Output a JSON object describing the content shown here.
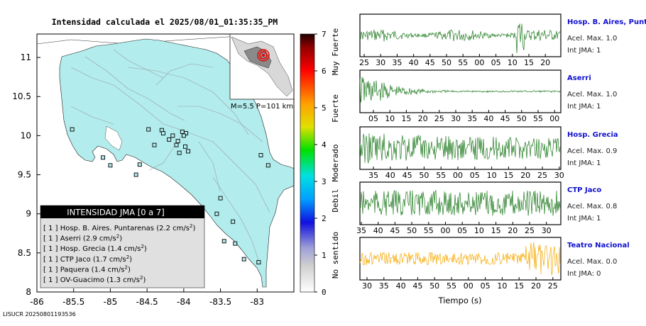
{
  "map": {
    "title": "Intensidad calculada el 2025/08/01_01:35:35_PM",
    "inset_text": "M=5.5 P=101 km",
    "footer_id": "LISUCR 20250801193536",
    "x_ticks": [
      "-86",
      "-85.5",
      "-85",
      "-84.5",
      "-84",
      "-83.5",
      "-83"
    ],
    "y_ticks": [
      "11",
      "10.5",
      "10",
      "9.5",
      "9",
      "8.5",
      "8"
    ],
    "legend": {
      "title": "INTENSIDAD JMA [0 a 7]",
      "entries": [
        {
          "int": "[ 1 ]",
          "name": "Hosp. B. Aires. Puntarenas",
          "val": "(2.2 cm/s",
          "sup": "2",
          "close": ")"
        },
        {
          "int": "[ 1 ]",
          "name": "Aserri",
          "val": "(2.9 cm/s",
          "sup": "2",
          "close": ")"
        },
        {
          "int": "[ 1 ]",
          "name": "Hosp. Grecia",
          "val": "(1.4 cm/s",
          "sup": "2",
          "close": ")"
        },
        {
          "int": "[ 1 ]",
          "name": "CTP Jaco",
          "val": "(1.7 cm/s",
          "sup": "2",
          "close": ")"
        },
        {
          "int": "[ 1 ]",
          "name": "Paquera",
          "val": "(1.4 cm/s",
          "sup": "2",
          "close": ")"
        },
        {
          "int": "[ 1 ]",
          "name": "OV-Guacimo",
          "val": "(1.3 cm/s",
          "sup": "2",
          "close": ")"
        }
      ]
    }
  },
  "colorbar": {
    "ticks": [
      "0",
      "1",
      "2",
      "3",
      "4",
      "5",
      "6",
      "7"
    ],
    "categories": [
      "No sentido",
      "Debil",
      "Moderado",
      "Fuerte",
      "Muy Fuerte"
    ]
  },
  "waveforms": {
    "xlabel": "Tiempo (s)",
    "traces": [
      {
        "station": "Hosp. B. Aires, Puntare",
        "acel": "Acel. Max. 1.0",
        "int": "Int JMA: 1",
        "color": "#1f7a1f",
        "ticks": [
          "25",
          "30",
          "35",
          "40",
          "45",
          "50",
          "55",
          "00",
          "05",
          "10",
          "15",
          "20"
        ]
      },
      {
        "station": "Aserri",
        "acel": "Acel. Max. 1.0",
        "int": "Int JMA: 1",
        "color": "#1f7a1f",
        "ticks": [
          "05",
          "10",
          "15",
          "20",
          "25",
          "30",
          "35",
          "40",
          "45",
          "50",
          "55",
          "00"
        ]
      },
      {
        "station": "Hosp. Grecia",
        "acel": "Acel. Max. 0.9",
        "int": "Int JMA: 1",
        "color": "#1f7a1f",
        "ticks": [
          "35",
          "40",
          "45",
          "50",
          "55",
          "00",
          "05",
          "10",
          "15",
          "20",
          "25",
          "30"
        ]
      },
      {
        "station": "CTP Jaco",
        "acel": "Acel. Max. 0.8",
        "int": "Int JMA: 1",
        "color": "#1f7a1f",
        "ticks": [
          "35",
          "40",
          "45",
          "50",
          "55",
          "00",
          "05",
          "10",
          "15",
          "20",
          "25",
          "30"
        ]
      },
      {
        "station": "Teatro Nacional",
        "acel": "Acel. Max. 0.0",
        "int": "Int JMA: 0",
        "color": "#f5a800",
        "ticks": [
          "30",
          "35",
          "40",
          "45",
          "50",
          "55",
          "00",
          "05",
          "10",
          "15",
          "20",
          "25"
        ]
      }
    ]
  },
  "chart_data": [
    {
      "type": "scatter",
      "title": "Intensidad calculada el 2025/08/01_01:35:35_PM",
      "xlabel": "",
      "ylabel": "",
      "xlim": [
        -86,
        -82.5
      ],
      "ylim": [
        8,
        11.3
      ],
      "legend_position": "bottom-left",
      "stations": [
        {
          "name": "Hosp. B. Aires. Puntarenas",
          "intensity": 1,
          "pga_cm_s2": 2.2
        },
        {
          "name": "Aserri",
          "intensity": 1,
          "pga_cm_s2": 2.9
        },
        {
          "name": "Hosp. Grecia",
          "intensity": 1,
          "pga_cm_s2": 1.4
        },
        {
          "name": "CTP Jaco",
          "intensity": 1,
          "pga_cm_s2": 1.7
        },
        {
          "name": "Paquera",
          "intensity": 1,
          "pga_cm_s2": 1.4
        },
        {
          "name": "OV-Guacimo",
          "intensity": 1,
          "pga_cm_s2": 1.3
        }
      ],
      "station_markers": [
        {
          "x": -85.52,
          "y": 10.08
        },
        {
          "x": -84.48,
          "y": 10.08
        },
        {
          "x": -84.3,
          "y": 10.07
        },
        {
          "x": -84.28,
          "y": 10.03
        },
        {
          "x": -84.02,
          "y": 10.05
        },
        {
          "x": -83.97,
          "y": 10.03
        },
        {
          "x": -84.15,
          "y": 10.0
        },
        {
          "x": -84.0,
          "y": 10.0
        },
        {
          "x": -84.08,
          "y": 9.93
        },
        {
          "x": -84.2,
          "y": 9.95
        },
        {
          "x": -84.1,
          "y": 9.88
        },
        {
          "x": -84.4,
          "y": 9.88
        },
        {
          "x": -83.98,
          "y": 9.86
        },
        {
          "x": -83.94,
          "y": 9.8
        },
        {
          "x": -84.06,
          "y": 9.78
        },
        {
          "x": -82.95,
          "y": 9.75
        },
        {
          "x": -82.85,
          "y": 9.62
        },
        {
          "x": -84.6,
          "y": 9.63
        },
        {
          "x": -84.65,
          "y": 9.5
        },
        {
          "x": -85.0,
          "y": 9.62
        },
        {
          "x": -85.1,
          "y": 9.72
        },
        {
          "x": -83.5,
          "y": 9.2
        },
        {
          "x": -83.55,
          "y": 9.0
        },
        {
          "x": -83.33,
          "y": 8.9
        },
        {
          "x": -83.45,
          "y": 8.65
        },
        {
          "x": -83.3,
          "y": 8.62
        },
        {
          "x": -83.18,
          "y": 8.42
        },
        {
          "x": -82.98,
          "y": 8.38
        }
      ],
      "epicenter": {
        "x": -84.1,
        "y": 9.85
      },
      "magnitude": 5.5,
      "depth_km": 101
    },
    {
      "type": "line",
      "title": "",
      "xlabel": "Tiempo (s)",
      "series": [
        {
          "name": "Hosp. B. Aires, Puntare",
          "acel_max": 1.0,
          "int_jma": 1
        },
        {
          "name": "Aserri",
          "acel_max": 1.0,
          "int_jma": 1
        },
        {
          "name": "Hosp. Grecia",
          "acel_max": 0.9,
          "int_jma": 1
        },
        {
          "name": "CTP Jaco",
          "acel_max": 0.8,
          "int_jma": 1
        },
        {
          "name": "Teatro Nacional",
          "acel_max": 0.0,
          "int_jma": 0
        }
      ]
    }
  ]
}
